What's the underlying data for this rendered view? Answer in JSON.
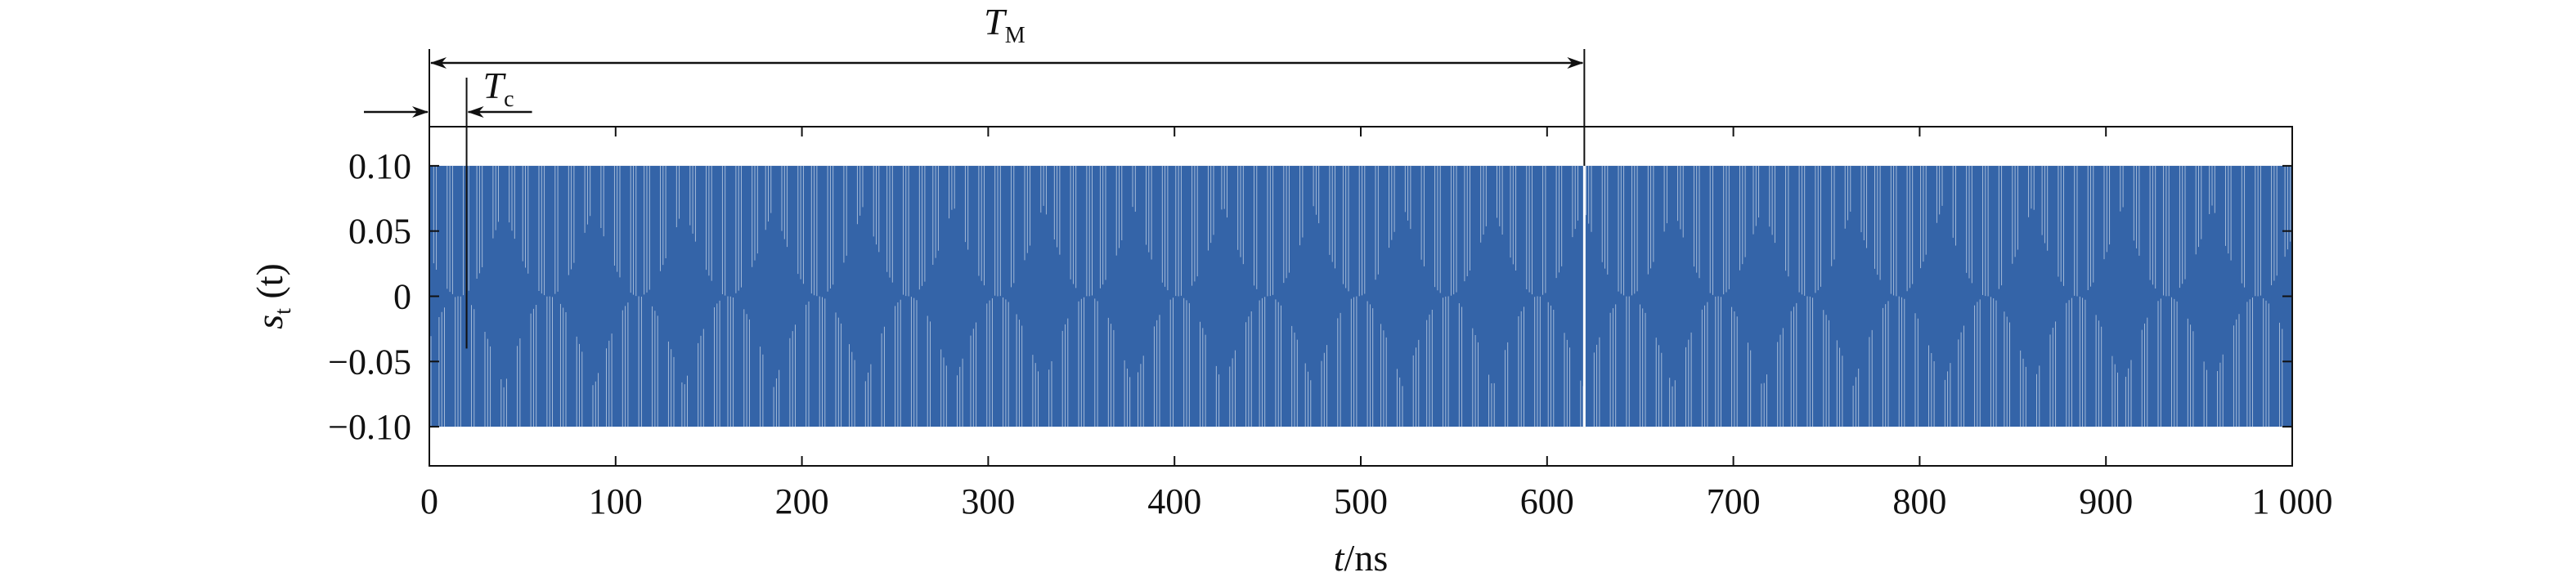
{
  "chart_data": {
    "type": "line",
    "title": "",
    "xlabel_var": "t",
    "xlabel_unit": "/ns",
    "ylabel_var": "s",
    "ylabel_sub": "t",
    "ylabel_arg": " (t)",
    "xlim": [
      0,
      1000
    ],
    "ylim": [
      -0.13,
      0.13
    ],
    "x_ticks": [
      0,
      100,
      200,
      300,
      400,
      500,
      600,
      700,
      800,
      900,
      1000
    ],
    "x_tick_labels": [
      "0",
      "100",
      "200",
      "300",
      "400",
      "500",
      "600",
      "700",
      "800",
      "900",
      "1 000"
    ],
    "y_ticks": [
      0.1,
      0.05,
      0,
      -0.05,
      -0.1
    ],
    "y_tick_labels": [
      "0.10",
      "0.05",
      "0",
      "−0.05",
      "−0.10"
    ],
    "grid": false,
    "series": [
      {
        "color": "#3464a8",
        "amplitude": 0.1,
        "modulation_period_ns": 620,
        "chip_period_ns": 20
      }
    ],
    "annotations": {
      "TM": {
        "main": "T",
        "sub": "M",
        "x_start": 0,
        "x_end": 620
      },
      "Tc": {
        "main": "T",
        "sub": "c",
        "x_start": 0,
        "x_end": 20
      }
    }
  }
}
